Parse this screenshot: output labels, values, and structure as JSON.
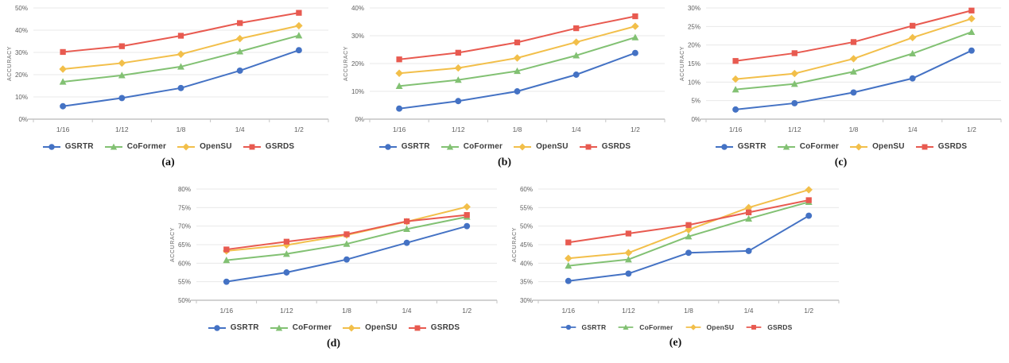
{
  "colors": {
    "grid": "#e8e8e8",
    "axis": "#c4c4c4",
    "tick_text": "#5f5f5f",
    "legend_text": "#3d3d3d",
    "caption_text": "#111111",
    "gsrtr_blue": "#4472C4",
    "coformer_green": "#82C173",
    "opensu_yellow": "#F2BF4A",
    "gsrds_red": "#E85A50"
  },
  "chart_data": [
    {
      "id": "a",
      "caption": "(a)",
      "row": "top",
      "type": "line",
      "ylabel": "ACCURACY",
      "xlabel": "",
      "categories": [
        "1/16",
        "1/12",
        "1/8",
        "1/4",
        "1/2"
      ],
      "ylim": [
        0,
        50
      ],
      "ytick_step": 10,
      "yticks": [
        "0%",
        "10%",
        "20%",
        "30%",
        "40%",
        "50%"
      ],
      "grid": true,
      "legend_position": "bottom",
      "legend_scale": "normal",
      "series": [
        {
          "name": "GSRTR",
          "marker": "circle",
          "color": "#4472C4",
          "values": [
            5.8,
            9.5,
            14.0,
            21.8,
            31.0
          ]
        },
        {
          "name": "CoFormer",
          "marker": "triangle",
          "color": "#82C173",
          "values": [
            16.8,
            19.7,
            23.6,
            30.4,
            37.6
          ]
        },
        {
          "name": "OpenSU",
          "marker": "diamond",
          "color": "#F2BF4A",
          "values": [
            22.5,
            25.2,
            29.2,
            36.2,
            42.0
          ]
        },
        {
          "name": "GSRDS",
          "marker": "square",
          "color": "#E85A50",
          "values": [
            30.2,
            32.8,
            37.5,
            43.2,
            47.8
          ]
        }
      ]
    },
    {
      "id": "b",
      "caption": "(b)",
      "row": "top",
      "type": "line",
      "ylabel": "ACCURACY",
      "xlabel": "",
      "categories": [
        "1/16",
        "1/12",
        "1/8",
        "1/4",
        "1/2"
      ],
      "ylim": [
        0,
        40
      ],
      "ytick_step": 10,
      "yticks": [
        "0%",
        "10%",
        "20%",
        "30%",
        "40%"
      ],
      "grid": true,
      "legend_position": "bottom",
      "legend_scale": "normal",
      "series": [
        {
          "name": "GSRTR",
          "marker": "circle",
          "color": "#4472C4",
          "values": [
            3.8,
            6.5,
            10.0,
            16.0,
            23.8
          ]
        },
        {
          "name": "CoFormer",
          "marker": "triangle",
          "color": "#82C173",
          "values": [
            11.9,
            14.1,
            17.3,
            22.9,
            29.4
          ]
        },
        {
          "name": "OpenSU",
          "marker": "diamond",
          "color": "#F2BF4A",
          "values": [
            16.5,
            18.4,
            22.0,
            27.7,
            33.4
          ]
        },
        {
          "name": "GSRDS",
          "marker": "square",
          "color": "#E85A50",
          "values": [
            21.5,
            23.9,
            27.6,
            32.7,
            37.0
          ]
        }
      ]
    },
    {
      "id": "c",
      "caption": "(c)",
      "row": "top",
      "type": "line",
      "ylabel": "ACCURACY",
      "xlabel": "",
      "categories": [
        "1/16",
        "1/12",
        "1/8",
        "1/4",
        "1/2"
      ],
      "ylim": [
        0,
        30
      ],
      "ytick_step": 5,
      "yticks": [
        "0%",
        "5%",
        "10%",
        "15%",
        "20%",
        "25%",
        "30%"
      ],
      "grid": true,
      "legend_position": "bottom",
      "legend_scale": "normal",
      "series": [
        {
          "name": "GSRTR",
          "marker": "circle",
          "color": "#4472C4",
          "values": [
            2.6,
            4.3,
            7.2,
            11.0,
            18.5
          ]
        },
        {
          "name": "CoFormer",
          "marker": "triangle",
          "color": "#82C173",
          "values": [
            8.0,
            9.5,
            12.8,
            17.7,
            23.5
          ]
        },
        {
          "name": "OpenSU",
          "marker": "diamond",
          "color": "#F2BF4A",
          "values": [
            10.8,
            12.3,
            16.3,
            22.0,
            27.1
          ]
        },
        {
          "name": "GSRDS",
          "marker": "square",
          "color": "#E85A50",
          "values": [
            15.7,
            17.8,
            20.8,
            25.2,
            29.3
          ]
        }
      ]
    },
    {
      "id": "d",
      "caption": "(d)",
      "row": "bottom",
      "type": "line",
      "ylabel": "ACCURACY",
      "xlabel": "",
      "categories": [
        "1/16",
        "1/12",
        "1/8",
        "1/4",
        "1/2"
      ],
      "ylim": [
        50,
        80
      ],
      "ytick_step": 5,
      "yticks": [
        "50%",
        "55%",
        "60%",
        "65%",
        "70%",
        "75%",
        "80%"
      ],
      "grid": true,
      "legend_position": "bottom",
      "legend_scale": "normal",
      "series": [
        {
          "name": "GSRTR",
          "marker": "circle",
          "color": "#4472C4",
          "values": [
            55.0,
            57.5,
            61.0,
            65.5,
            70.0
          ]
        },
        {
          "name": "CoFormer",
          "marker": "triangle",
          "color": "#82C173",
          "values": [
            60.8,
            62.5,
            65.2,
            69.2,
            72.5
          ]
        },
        {
          "name": "OpenSU",
          "marker": "diamond",
          "color": "#F2BF4A",
          "values": [
            63.3,
            64.9,
            67.6,
            71.2,
            75.2
          ]
        },
        {
          "name": "GSRDS",
          "marker": "square",
          "color": "#E85A50",
          "values": [
            63.7,
            65.8,
            67.8,
            71.3,
            73.0
          ]
        }
      ]
    },
    {
      "id": "e",
      "caption": "(e)",
      "row": "bottom",
      "type": "line",
      "ylabel": "ACCURACY",
      "xlabel": "",
      "categories": [
        "1/16",
        "1/12",
        "1/8",
        "1/4",
        "1/2"
      ],
      "ylim": [
        30,
        60
      ],
      "ytick_step": 5,
      "yticks": [
        "30%",
        "35%",
        "40%",
        "45%",
        "50%",
        "55%",
        "60%"
      ],
      "grid": true,
      "legend_position": "bottom",
      "legend_scale": "small",
      "series": [
        {
          "name": "GSRTR",
          "marker": "circle",
          "color": "#4472C4",
          "values": [
            35.2,
            37.2,
            42.8,
            43.3,
            52.8
          ]
        },
        {
          "name": "CoFormer",
          "marker": "triangle",
          "color": "#82C173",
          "values": [
            39.3,
            41.0,
            47.2,
            52.0,
            56.5
          ]
        },
        {
          "name": "OpenSU",
          "marker": "diamond",
          "color": "#F2BF4A",
          "values": [
            41.3,
            42.8,
            49.0,
            55.0,
            59.8
          ]
        },
        {
          "name": "GSRDS",
          "marker": "square",
          "color": "#E85A50",
          "values": [
            45.6,
            48.0,
            50.3,
            53.7,
            57.0
          ]
        }
      ]
    }
  ]
}
